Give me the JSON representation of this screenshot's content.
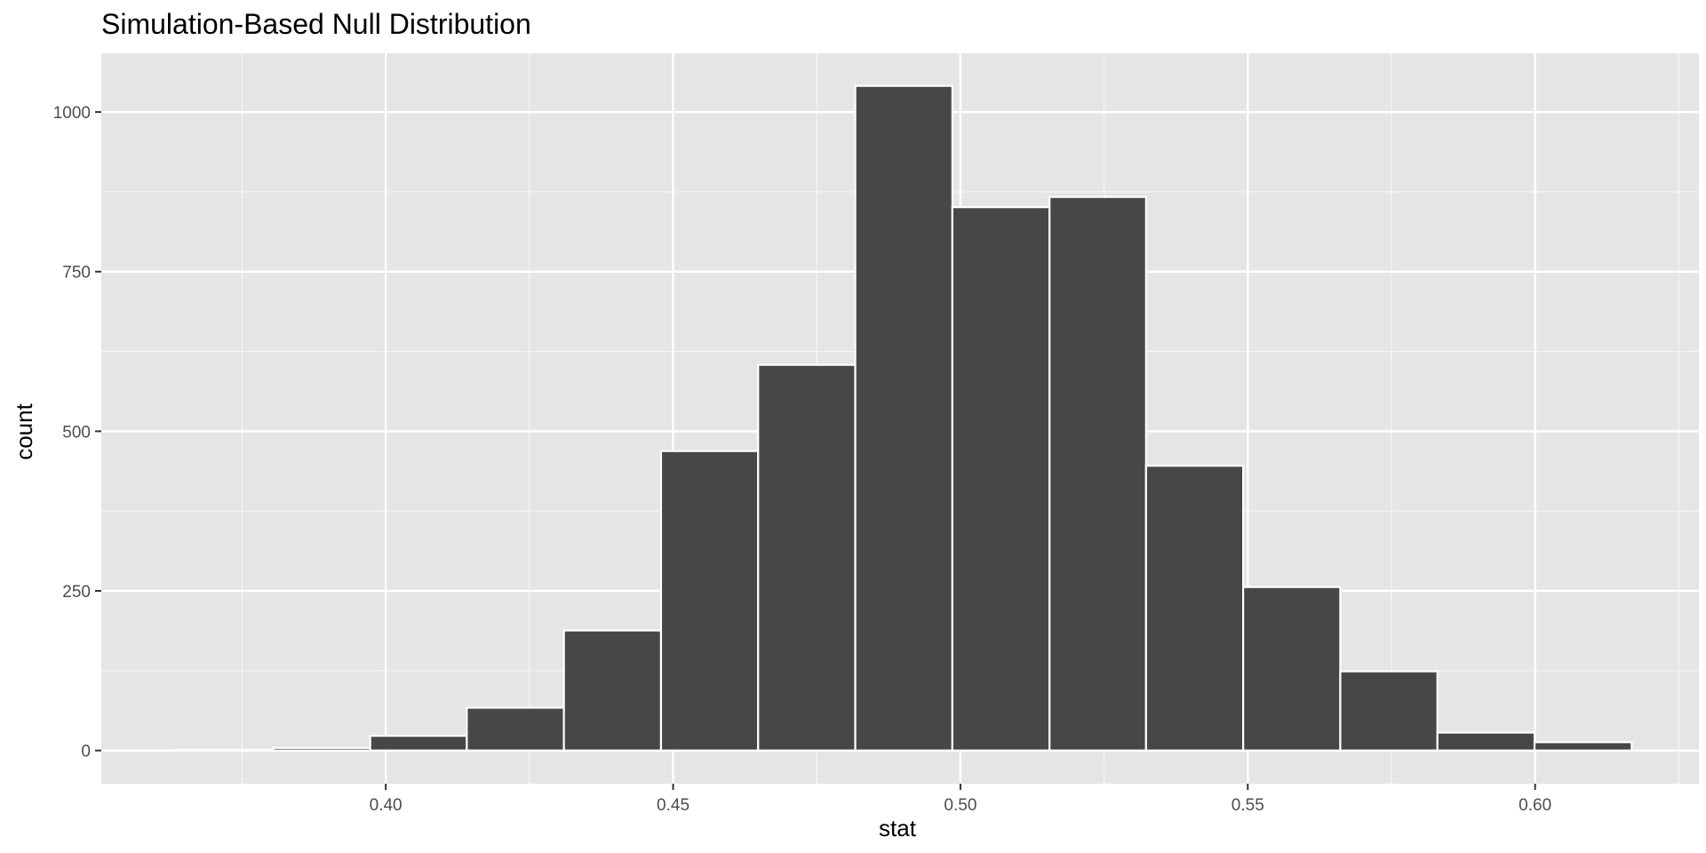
{
  "chart_data": {
    "type": "bar",
    "title": "Simulation-Based Null Distribution",
    "xlabel": "stat",
    "ylabel": "count",
    "xlim": [
      0.3505,
      0.6285
    ],
    "ylim": [
      -52,
      1092
    ],
    "x_ticks": [
      0.4,
      0.45,
      0.5,
      0.55,
      0.6
    ],
    "x_tick_labels": [
      "0.40",
      "0.45",
      "0.50",
      "0.55",
      "0.60"
    ],
    "x_minor_ticks": [
      0.375,
      0.425,
      0.475,
      0.525,
      0.575,
      0.625
    ],
    "y_ticks": [
      0,
      250,
      500,
      750,
      1000
    ],
    "y_tick_labels": [
      "0",
      "250",
      "500",
      "750",
      "1000"
    ],
    "y_minor_ticks": [
      125,
      375,
      625,
      875
    ],
    "bin_edges": [
      0.3635,
      0.3804,
      0.3973,
      0.4141,
      0.431,
      0.4479,
      0.4648,
      0.4817,
      0.4986,
      0.5155,
      0.5323,
      0.5492,
      0.5661,
      0.583,
      0.5999,
      0.6168
    ],
    "values": [
      1,
      4,
      23,
      67,
      188,
      469,
      604,
      1041,
      851,
      867,
      446,
      256,
      124,
      28,
      13
    ],
    "bar_fill": "#474747",
    "bar_outline": "#ffffff",
    "panel_background": "#e5e5e5",
    "grid": true,
    "legend": "none"
  }
}
